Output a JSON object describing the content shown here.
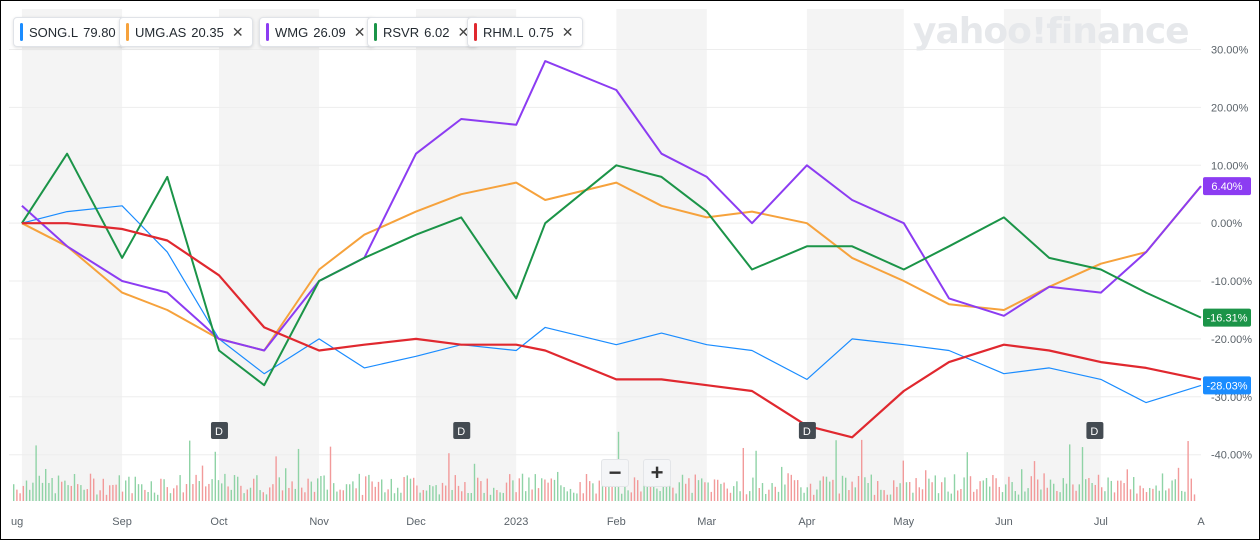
{
  "logo": "yahoo!finance",
  "tickers": [
    {
      "symbol": "SONG.L",
      "value": "79.80",
      "color": "#1a8cff",
      "closable": false
    },
    {
      "symbol": "UMG.AS",
      "value": "20.35",
      "color": "#f6a23c",
      "closable": true
    },
    {
      "symbol": "WMG",
      "value": "26.09",
      "color": "#8c3cf2",
      "closable": true
    },
    {
      "symbol": "RSVR",
      "value": "6.02",
      "color": "#1b9448",
      "closable": true
    },
    {
      "symbol": "RHM.L",
      "value": "0.75",
      "color": "#e0282f",
      "closable": true
    }
  ],
  "zoom": {
    "minus": "−",
    "plus": "+"
  },
  "chart_data": {
    "type": "line",
    "ylim": [
      -48,
      37
    ],
    "y_ticks": [
      30,
      20,
      10,
      0,
      -10,
      -20,
      -30,
      -40
    ],
    "y_tick_labels": [
      "30.00%",
      "20.00%",
      "10.00%",
      "0.00%",
      "-10.00%",
      "-20.00%",
      "-30.00%",
      "-40.00%"
    ],
    "x_tick_labels": [
      "ug",
      "Sep",
      "Oct",
      "Nov",
      "Dec",
      "2023",
      "Feb",
      "Mar",
      "Apr",
      "May",
      "Jun",
      "Jul",
      "A"
    ],
    "x_tick_dates": [
      "2022-08-01",
      "2022-09-01",
      "2022-10-01",
      "2022-11-01",
      "2022-12-01",
      "2023-01-01",
      "2023-02-01",
      "2023-03-01",
      "2023-04-01",
      "2023-05-01",
      "2023-06-01",
      "2023-07-01",
      "2023-08-01"
    ],
    "dividend_markers": [
      {
        "date": "2022-10-01",
        "label": "D"
      },
      {
        "date": "2022-12-15",
        "label": "D"
      },
      {
        "date": "2023-04-01",
        "label": "D"
      },
      {
        "date": "2023-06-29",
        "label": "D"
      }
    ],
    "end_labels": [
      {
        "series": "WMG",
        "text": "6.40%",
        "value": 6.4
      },
      {
        "series": "RSVR",
        "text": "-16.31%",
        "value": -16.31
      },
      {
        "series": "SONG.L",
        "text": "-28.03%",
        "value": -28.03
      }
    ],
    "series": [
      {
        "name": "SONG.L",
        "color": "#1a8cff",
        "x": [
          "2022-08-01",
          "2022-08-15",
          "2022-09-01",
          "2022-09-15",
          "2022-10-01",
          "2022-10-15",
          "2022-11-01",
          "2022-11-15",
          "2022-12-01",
          "2022-12-15",
          "2023-01-01",
          "2023-01-10",
          "2023-02-01",
          "2023-02-15",
          "2023-03-01",
          "2023-03-15",
          "2023-04-01",
          "2023-04-15",
          "2023-05-01",
          "2023-05-15",
          "2023-06-01",
          "2023-06-15",
          "2023-07-01",
          "2023-07-15",
          "2023-08-01"
        ],
        "y": [
          0,
          2,
          3,
          -5,
          -20,
          -26,
          -20,
          -25,
          -23,
          -21,
          -22,
          -18,
          -21,
          -19,
          -21,
          -22,
          -27,
          -20,
          -21,
          -22,
          -26,
          -25,
          -27,
          -31,
          -28.03
        ]
      },
      {
        "name": "UMG.AS",
        "color": "#f6a23c",
        "x": [
          "2022-08-01",
          "2022-08-15",
          "2022-09-01",
          "2022-09-15",
          "2022-10-01",
          "2022-10-15",
          "2022-11-01",
          "2022-11-15",
          "2022-12-01",
          "2022-12-15",
          "2023-01-01",
          "2023-01-10",
          "2023-02-01",
          "2023-02-15",
          "2023-03-01",
          "2023-03-15",
          "2023-04-01",
          "2023-04-15",
          "2023-05-01",
          "2023-05-15",
          "2023-06-01",
          "2023-06-15",
          "2023-07-01",
          "2023-07-15",
          "2023-08-01"
        ],
        "y": [
          0,
          -4,
          -12,
          -15,
          -20,
          -22,
          -8,
          -2,
          2,
          5,
          7,
          4,
          7,
          3,
          1,
          2,
          0,
          -6,
          -10,
          -14,
          -15,
          -11,
          -7,
          -5,
          6.4
        ]
      },
      {
        "name": "WMG",
        "color": "#8c3cf2",
        "x": [
          "2022-08-01",
          "2022-08-15",
          "2022-09-01",
          "2022-09-15",
          "2022-10-01",
          "2022-10-15",
          "2022-11-01",
          "2022-11-15",
          "2022-12-01",
          "2022-12-15",
          "2023-01-01",
          "2023-01-10",
          "2023-02-01",
          "2023-02-15",
          "2023-03-01",
          "2023-03-15",
          "2023-04-01",
          "2023-04-15",
          "2023-05-01",
          "2023-05-15",
          "2023-06-01",
          "2023-06-15",
          "2023-07-01",
          "2023-07-15",
          "2023-08-01"
        ],
        "y": [
          3,
          -4,
          -10,
          -12,
          -20,
          -22,
          -10,
          -6,
          12,
          18,
          17,
          28,
          23,
          12,
          8,
          0,
          10,
          4,
          0,
          -13,
          -16,
          -11,
          -12,
          -5,
          6.4
        ]
      },
      {
        "name": "RSVR",
        "color": "#1b9448",
        "x": [
          "2022-08-01",
          "2022-08-15",
          "2022-09-01",
          "2022-09-15",
          "2022-10-01",
          "2022-10-15",
          "2022-11-01",
          "2022-11-15",
          "2022-12-01",
          "2022-12-15",
          "2023-01-01",
          "2023-01-10",
          "2023-02-01",
          "2023-02-15",
          "2023-03-01",
          "2023-03-15",
          "2023-04-01",
          "2023-04-15",
          "2023-05-01",
          "2023-05-15",
          "2023-06-01",
          "2023-06-15",
          "2023-07-01",
          "2023-07-15",
          "2023-08-01"
        ],
        "y": [
          0,
          12,
          -6,
          8,
          -22,
          -28,
          -10,
          -6,
          -2,
          1,
          -13,
          0,
          10,
          8,
          2,
          -8,
          -4,
          -4,
          -8,
          -4,
          1,
          -6,
          -8,
          -12,
          -16.31
        ]
      },
      {
        "name": "RHM.L",
        "color": "#e0282f",
        "x": [
          "2022-08-01",
          "2022-08-15",
          "2022-09-01",
          "2022-09-15",
          "2022-10-01",
          "2022-10-15",
          "2022-11-01",
          "2022-11-15",
          "2022-12-01",
          "2022-12-15",
          "2023-01-01",
          "2023-01-10",
          "2023-02-01",
          "2023-02-15",
          "2023-03-01",
          "2023-03-15",
          "2023-04-01",
          "2023-04-15",
          "2023-05-01",
          "2023-05-15",
          "2023-06-01",
          "2023-06-15",
          "2023-07-01",
          "2023-07-15",
          "2023-08-01"
        ],
        "y": [
          0,
          0,
          -1,
          -3,
          -9,
          -18,
          -22,
          -21,
          -20,
          -21,
          -21,
          -22,
          -27,
          -27,
          -28,
          -29,
          -35,
          -37,
          -29,
          -24,
          -21,
          -22,
          -24,
          -25,
          -27
        ]
      }
    ]
  }
}
